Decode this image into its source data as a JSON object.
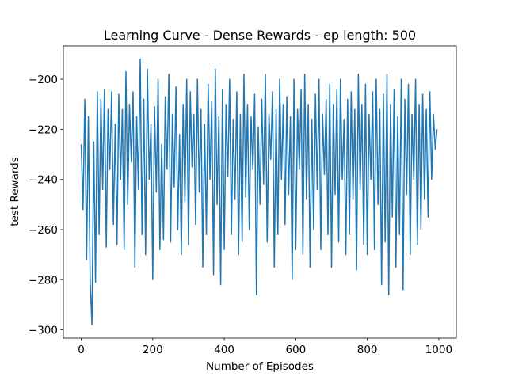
{
  "chart_data": {
    "type": "line",
    "title": "Learning Curve - Dense Rewards - ep length: 500",
    "xlabel": "Number of Episodes",
    "ylabel": "test Rewards",
    "color": "#1f77b4",
    "xlim": [
      -49.95,
      1048.95
    ],
    "ylim": [
      -303.3,
      -186.7
    ],
    "xticks": [
      0,
      200,
      400,
      600,
      800,
      1000
    ],
    "yticks": [
      {
        "value": -300,
        "label": "−300"
      },
      {
        "value": -280,
        "label": "−280"
      },
      {
        "value": -260,
        "label": "−260"
      },
      {
        "value": -240,
        "label": "−240"
      },
      {
        "value": -220,
        "label": "−220"
      },
      {
        "value": -200,
        "label": "−200"
      }
    ],
    "x": [
      0,
      5,
      10,
      15,
      20,
      25,
      30,
      35,
      40,
      45,
      50,
      55,
      60,
      65,
      70,
      75,
      80,
      85,
      90,
      95,
      100,
      105,
      110,
      115,
      120,
      125,
      130,
      135,
      140,
      145,
      150,
      155,
      160,
      165,
      170,
      175,
      180,
      185,
      190,
      195,
      200,
      205,
      210,
      215,
      220,
      225,
      230,
      235,
      240,
      245,
      250,
      255,
      260,
      265,
      270,
      275,
      280,
      285,
      290,
      295,
      300,
      305,
      310,
      315,
      320,
      325,
      330,
      335,
      340,
      345,
      350,
      355,
      360,
      365,
      370,
      375,
      380,
      385,
      390,
      395,
      400,
      405,
      410,
      415,
      420,
      425,
      430,
      435,
      440,
      445,
      450,
      455,
      460,
      465,
      470,
      475,
      480,
      485,
      490,
      495,
      500,
      505,
      510,
      515,
      520,
      525,
      530,
      535,
      540,
      545,
      550,
      555,
      560,
      565,
      570,
      575,
      580,
      585,
      590,
      595,
      600,
      605,
      610,
      615,
      620,
      625,
      630,
      635,
      640,
      645,
      650,
      655,
      660,
      665,
      670,
      675,
      680,
      685,
      690,
      695,
      700,
      705,
      710,
      715,
      720,
      725,
      730,
      735,
      740,
      745,
      750,
      755,
      760,
      765,
      770,
      775,
      780,
      785,
      790,
      795,
      800,
      805,
      810,
      815,
      820,
      825,
      830,
      835,
      840,
      845,
      850,
      855,
      860,
      865,
      870,
      875,
      880,
      885,
      890,
      895,
      900,
      905,
      910,
      915,
      920,
      925,
      930,
      935,
      940,
      945,
      950,
      955,
      960,
      965,
      970,
      975,
      980,
      985,
      990,
      995
    ],
    "values": [
      -226,
      -252,
      -208,
      -272,
      -215,
      -281,
      -298,
      -225,
      -281,
      -205,
      -262,
      -208,
      -244,
      -204,
      -267,
      -212,
      -236,
      -205,
      -258,
      -218,
      -266,
      -206,
      -240,
      -212,
      -268,
      -197,
      -250,
      -210,
      -233,
      -205,
      -275,
      -215,
      -244,
      -192,
      -262,
      -208,
      -270,
      -196,
      -240,
      -218,
      -280,
      -211,
      -245,
      -200,
      -268,
      -226,
      -264,
      -207,
      -236,
      -198,
      -265,
      -214,
      -243,
      -203,
      -260,
      -222,
      -270,
      -210,
      -249,
      -200,
      -266,
      -205,
      -235,
      -214,
      -258,
      -200,
      -245,
      -212,
      -275,
      -218,
      -262,
      -202,
      -240,
      -209,
      -278,
      -196,
      -250,
      -215,
      -282,
      -204,
      -268,
      -210,
      -239,
      -200,
      -262,
      -216,
      -248,
      -205,
      -270,
      -214,
      -265,
      -198,
      -247,
      -210,
      -260,
      -215,
      -236,
      -206,
      -286,
      -219,
      -250,
      -208,
      -242,
      -198,
      -265,
      -214,
      -232,
      -205,
      -275,
      -212,
      -262,
      -200,
      -240,
      -210,
      -258,
      -207,
      -246,
      -215,
      -280,
      -200,
      -268,
      -212,
      -236,
      -204,
      -270,
      -198,
      -248,
      -210,
      -275,
      -216,
      -260,
      -206,
      -244,
      -200,
      -268,
      -214,
      -238,
      -208,
      -262,
      -202,
      -275,
      -210,
      -246,
      -204,
      -265,
      -200,
      -240,
      -216,
      -270,
      -208,
      -262,
      -205,
      -248,
      -212,
      -276,
      -198,
      -244,
      -210,
      -266,
      -202,
      -270,
      -214,
      -240,
      -205,
      -268,
      -200,
      -250,
      -212,
      -282,
      -206,
      -265,
      -198,
      -286,
      -210,
      -255,
      -204,
      -275,
      -215,
      -262,
      -200,
      -284,
      -208,
      -246,
      -202,
      -270,
      -214,
      -240,
      -200,
      -266,
      -210,
      -260,
      -206,
      -248,
      -212,
      -255,
      -205,
      -240,
      -214,
      -228,
      -220
    ]
  }
}
